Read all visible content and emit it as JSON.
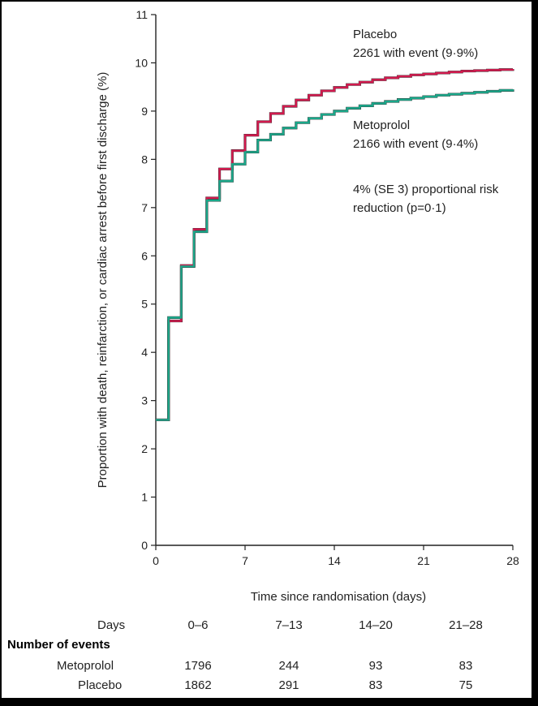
{
  "chart_data": {
    "type": "line",
    "title": "",
    "xlabel": "Time since randomisation (days)",
    "ylabel": "Proportion with death, reinfarction, or cardiac arrest before first discharge (%)",
    "xlim": [
      0,
      28
    ],
    "ylim": [
      0,
      11
    ],
    "xticks": [
      "0",
      "7",
      "14",
      "21",
      "28"
    ],
    "yticks": [
      "0",
      "1",
      "2",
      "3",
      "4",
      "5",
      "6",
      "7",
      "8",
      "9",
      "10",
      "11"
    ],
    "series": [
      {
        "name": "Placebo",
        "color": "#d21a4e",
        "x": [
          0,
          1,
          2,
          3,
          4,
          5,
          6,
          7,
          8,
          9,
          10,
          11,
          12,
          13,
          14,
          15,
          16,
          17,
          18,
          19,
          20,
          21,
          22,
          23,
          24,
          25,
          26,
          27,
          28
        ],
        "y": [
          2.6,
          4.65,
          5.8,
          6.55,
          7.2,
          7.8,
          8.18,
          8.5,
          8.78,
          8.95,
          9.1,
          9.23,
          9.33,
          9.42,
          9.49,
          9.55,
          9.6,
          9.65,
          9.69,
          9.72,
          9.75,
          9.77,
          9.79,
          9.81,
          9.83,
          9.84,
          9.85,
          9.86,
          9.87
        ]
      },
      {
        "name": "Metoprolol",
        "color": "#1aa88a",
        "x": [
          0,
          1,
          2,
          3,
          4,
          5,
          6,
          7,
          8,
          9,
          10,
          11,
          12,
          13,
          14,
          15,
          16,
          17,
          18,
          19,
          20,
          21,
          22,
          23,
          24,
          25,
          26,
          27,
          28
        ],
        "y": [
          2.6,
          4.72,
          5.78,
          6.5,
          7.15,
          7.55,
          7.9,
          8.15,
          8.4,
          8.52,
          8.65,
          8.76,
          8.85,
          8.93,
          9.0,
          9.06,
          9.11,
          9.16,
          9.2,
          9.24,
          9.27,
          9.3,
          9.33,
          9.35,
          9.37,
          9.39,
          9.41,
          9.43,
          9.45
        ]
      }
    ],
    "annotations": {
      "placebo_name": "Placebo",
      "placebo_events": "2261 with event (9·9%)",
      "metoprolol_name": "Metoprolol",
      "metoprolol_events": "2166 with event (9·4%)",
      "risk_line1": "4% (SE 3) proportional risk",
      "risk_line2": "reduction (p=0·1)"
    }
  },
  "events_table": {
    "days_label": "Days",
    "periods": [
      "0–6",
      "7–13",
      "14–20",
      "21–28"
    ],
    "header": "Number of events",
    "rows": [
      {
        "label": "Metoprolol",
        "values": [
          "1796",
          "244",
          "93",
          "83"
        ]
      },
      {
        "label": "Placebo",
        "values": [
          "1862",
          "291",
          "83",
          "75"
        ]
      }
    ]
  }
}
